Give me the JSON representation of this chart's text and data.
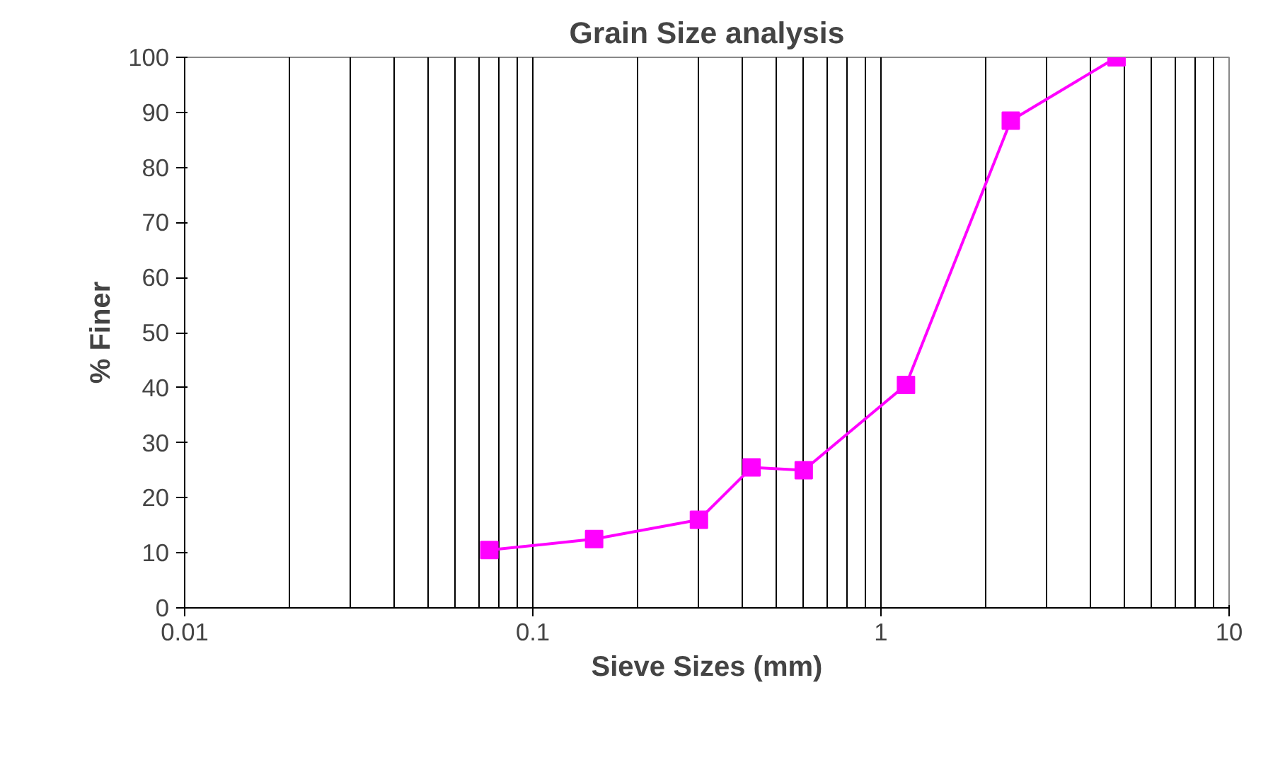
{
  "chart_data": {
    "type": "line",
    "title": "Grain Size analysis",
    "xlabel": "Sieve Sizes (mm)",
    "ylabel": "% Finer",
    "x": [
      4.75,
      2.36,
      1.18,
      0.6,
      0.425,
      0.3,
      0.15,
      0.075
    ],
    "series": [
      {
        "color": "#ff00ff",
        "values": [
          100,
          88.5,
          40.5,
          25,
          25.5,
          16,
          12.5,
          10.5
        ]
      }
    ],
    "log": "x",
    "xlim": [
      0.01,
      10
    ],
    "xticks": [
      0.01,
      0.1,
      1,
      10
    ],
    "ylim": [
      0,
      100
    ],
    "yticks": [
      0,
      10,
      20,
      30,
      40,
      50,
      60,
      70,
      80,
      90,
      100
    ],
    "grid": "x",
    "marker": "square",
    "line_style": "solid"
  }
}
